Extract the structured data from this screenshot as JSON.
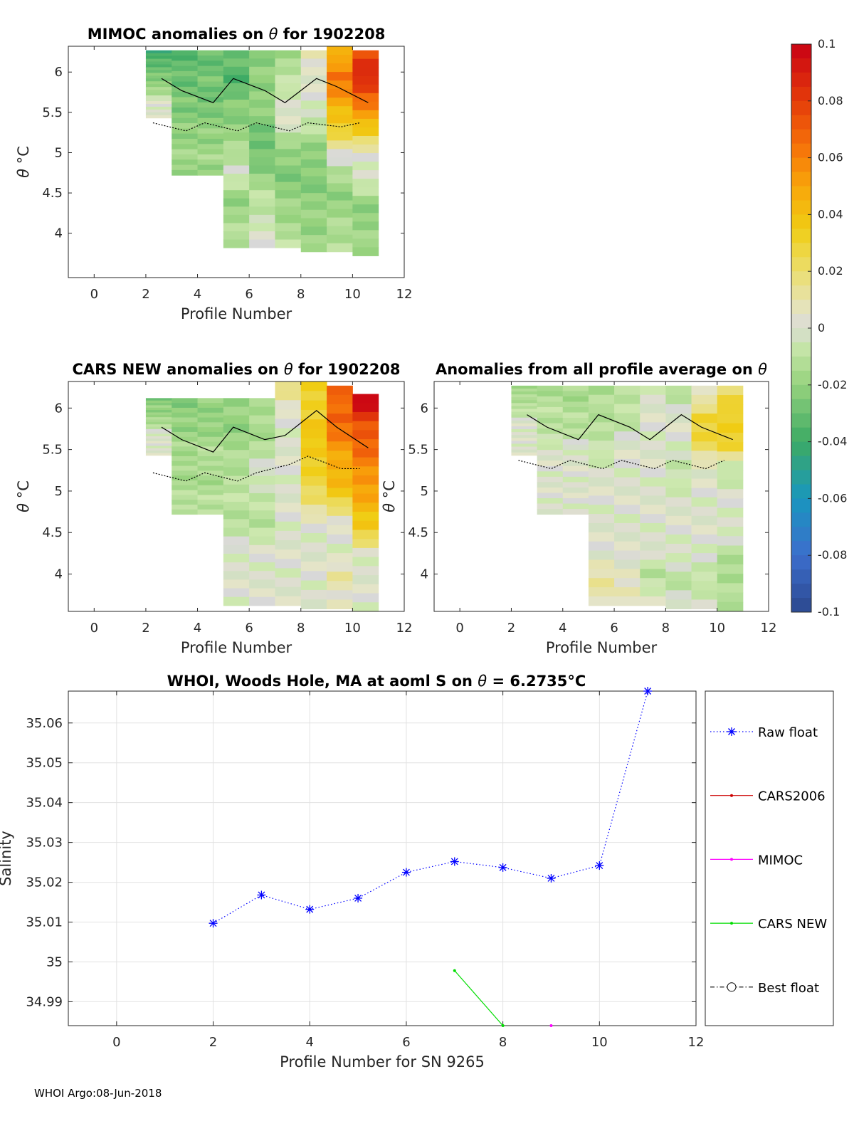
{
  "chart_data": [
    {
      "type": "heatmap",
      "name": "mimoc",
      "title_prefix": "MIMOC anomalies on ",
      "title_symbol": "θ",
      "title_suffix": "  for 1902208",
      "xlabel": "Profile Number",
      "ylabel_symbol": "θ",
      "ylabel_unit": " °C",
      "xlim": [
        -1,
        12
      ],
      "ylim": [
        3.45,
        6.32
      ],
      "xticks": [
        "0",
        "2",
        "4",
        "6",
        "8",
        "10",
        "12"
      ],
      "yticks": [
        "4",
        "4.5",
        "5",
        "5.5",
        "6"
      ],
      "columns": [
        {
          "x": 2,
          "y_range": [
            5.43,
            6.27
          ],
          "values": [
            -0.04,
            -0.035,
            -0.03,
            -0.025,
            -0.02,
            -0.015,
            0.0,
            0.0,
            0.0
          ]
        },
        {
          "x": 3,
          "y_range": [
            4.72,
            6.27
          ],
          "values": [
            -0.035,
            -0.03,
            -0.03,
            -0.025,
            -0.025,
            -0.02,
            -0.02,
            -0.015,
            -0.02
          ]
        },
        {
          "x": 4,
          "y_range": [
            4.72,
            6.27
          ],
          "values": [
            -0.03,
            -0.03,
            -0.025,
            -0.03,
            -0.025,
            -0.02,
            -0.02,
            -0.015,
            -0.02
          ]
        },
        {
          "x": 5,
          "y_range": [
            3.82,
            6.27
          ],
          "values": [
            -0.03,
            -0.035,
            -0.025,
            -0.02,
            -0.015,
            0.0,
            -0.02,
            -0.015,
            -0.01
          ]
        },
        {
          "x": 6,
          "y_range": [
            3.82,
            6.27
          ],
          "values": [
            -0.025,
            -0.02,
            -0.02,
            -0.025,
            -0.03,
            -0.02,
            -0.01,
            -0.005,
            0.0
          ]
        },
        {
          "x": 7,
          "y_range": [
            3.82,
            6.27
          ],
          "values": [
            -0.015,
            -0.01,
            0.0,
            0.0,
            -0.02,
            -0.025,
            -0.02,
            -0.015,
            -0.01
          ]
        },
        {
          "x": 8,
          "y_range": [
            3.77,
            6.27
          ],
          "values": [
            0.01,
            0.0,
            0.0,
            -0.01,
            -0.02,
            -0.025,
            -0.02,
            -0.02,
            -0.015
          ]
        },
        {
          "x": 9,
          "y_range": [
            3.77,
            6.32
          ],
          "values": [
            0.04,
            0.065,
            0.05,
            0.035,
            0.01,
            -0.015,
            -0.02,
            -0.015,
            -0.01
          ]
        },
        {
          "x": 10,
          "y_range": [
            3.72,
            6.27
          ],
          "values": [
            0.075,
            0.09,
            0.06,
            0.04,
            0.0,
            0.0,
            -0.02,
            -0.02,
            -0.015
          ]
        }
      ]
    },
    {
      "type": "heatmap",
      "name": "cars",
      "title_prefix": "CARS NEW anomalies on ",
      "title_symbol": "θ",
      "title_suffix": " for 1902208",
      "xlabel": "Profile Number",
      "ylabel_symbol": "θ",
      "ylabel_unit": " °C",
      "xlim": [
        -1,
        12
      ],
      "ylim": [
        3.55,
        6.32
      ],
      "xticks": [
        "0",
        "2",
        "4",
        "6",
        "8",
        "10",
        "12"
      ],
      "yticks": [
        "4",
        "4.5",
        "5",
        "5.5",
        "6"
      ],
      "columns": [
        {
          "x": 2,
          "y_range": [
            5.43,
            6.12
          ],
          "values": [
            -0.025,
            -0.02,
            -0.02,
            -0.015,
            -0.01,
            0.0,
            0.0,
            0.0,
            0.0
          ]
        },
        {
          "x": 3,
          "y_range": [
            4.72,
            6.12
          ],
          "values": [
            -0.025,
            -0.02,
            -0.02,
            -0.015,
            -0.015,
            -0.015,
            -0.015,
            -0.01,
            -0.01
          ]
        },
        {
          "x": 4,
          "y_range": [
            4.72,
            6.12
          ],
          "values": [
            -0.02,
            -0.02,
            -0.02,
            -0.015,
            -0.01,
            -0.015,
            -0.015,
            -0.01,
            -0.01
          ]
        },
        {
          "x": 5,
          "y_range": [
            3.62,
            6.12
          ],
          "values": [
            -0.02,
            -0.02,
            -0.015,
            -0.01,
            -0.01,
            -0.01,
            0.0,
            0.0,
            0.0
          ]
        },
        {
          "x": 6,
          "y_range": [
            3.62,
            6.12
          ],
          "values": [
            -0.015,
            -0.015,
            -0.01,
            0.0,
            -0.01,
            -0.01,
            0.0,
            0.0,
            0.0
          ]
        },
        {
          "x": 7,
          "y_range": [
            3.62,
            6.32
          ],
          "values": [
            0.02,
            0.0,
            0.0,
            0.0,
            0.0,
            0.0,
            0.0,
            0.0,
            0.0
          ]
        },
        {
          "x": 8,
          "y_range": [
            3.58,
            6.32
          ],
          "values": [
            0.035,
            0.03,
            0.04,
            0.03,
            0.025,
            0.0,
            0.0,
            0.0,
            0.0
          ]
        },
        {
          "x": 9,
          "y_range": [
            3.58,
            6.27
          ],
          "values": [
            0.065,
            0.07,
            0.055,
            0.045,
            0.035,
            0.0,
            0.0,
            0.01,
            0.005
          ]
        },
        {
          "x": 10,
          "y_range": [
            3.55,
            6.17
          ],
          "values": [
            0.1,
            0.075,
            0.065,
            0.055,
            0.045,
            0.035,
            0.0,
            0.0,
            0.0
          ]
        }
      ]
    },
    {
      "type": "heatmap",
      "name": "avg",
      "title_prefix": "Anomalies from all profile average on ",
      "title_symbol": "θ",
      "title_suffix": "",
      "xlabel": "Profile Number",
      "ylabel_symbol": "θ",
      "ylabel_unit": " °C",
      "xlim": [
        -1,
        12
      ],
      "ylim": [
        3.55,
        6.32
      ],
      "xticks": [
        "0",
        "2",
        "4",
        "6",
        "8",
        "10",
        "12"
      ],
      "yticks": [
        "4",
        "4.5",
        "5",
        "5.5",
        "6"
      ],
      "columns": [
        {
          "x": 2,
          "y_range": [
            5.43,
            6.27
          ],
          "values": [
            -0.015,
            -0.015,
            -0.01,
            -0.01,
            0.0,
            0.0,
            0.0,
            0.0,
            0.0
          ]
        },
        {
          "x": 3,
          "y_range": [
            4.72,
            6.27
          ],
          "values": [
            -0.015,
            -0.01,
            -0.01,
            -0.01,
            0.0,
            0.0,
            0.0,
            0.0,
            0.0
          ]
        },
        {
          "x": 4,
          "y_range": [
            4.72,
            6.27
          ],
          "values": [
            -0.015,
            -0.015,
            -0.01,
            -0.01,
            0.0,
            0.0,
            0.0,
            0.0,
            0.0
          ]
        },
        {
          "x": 5,
          "y_range": [
            3.62,
            6.27
          ],
          "values": [
            -0.015,
            -0.01,
            -0.01,
            0.0,
            0.0,
            0.0,
            0.0,
            0.01,
            0.01
          ]
        },
        {
          "x": 6,
          "y_range": [
            3.62,
            6.27
          ],
          "values": [
            -0.01,
            -0.01,
            0.0,
            0.0,
            0.0,
            0.0,
            0.0,
            0.005,
            0.005
          ]
        },
        {
          "x": 7,
          "y_range": [
            3.62,
            6.27
          ],
          "values": [
            0.0,
            0.0,
            0.0,
            0.0,
            0.0,
            0.0,
            0.0,
            -0.01,
            0.0
          ]
        },
        {
          "x": 8,
          "y_range": [
            3.58,
            6.27
          ],
          "values": [
            -0.01,
            0.0,
            0.0,
            -0.01,
            0.0,
            0.0,
            0.0,
            -0.01,
            0.0
          ]
        },
        {
          "x": 9,
          "y_range": [
            3.58,
            6.27
          ],
          "values": [
            0.0,
            0.03,
            0.025,
            0.0,
            0.0,
            0.0,
            0.0,
            -0.01,
            0.0
          ]
        },
        {
          "x": 10,
          "y_range": [
            3.55,
            6.27
          ],
          "values": [
            0.02,
            0.035,
            0.03,
            -0.01,
            0.0,
            0.0,
            -0.01,
            -0.015,
            -0.01
          ]
        }
      ]
    },
    {
      "type": "line",
      "name": "salinity",
      "title_prefix": "WHOI, Woods Hole, MA at aoml S on ",
      "title_symbol": "θ",
      "title_suffix": " = 6.2735°C",
      "xlabel": "Profile Number for SN 9265",
      "ylabel": "Salinity",
      "xlim": [
        -1,
        12
      ],
      "ylim": [
        34.984,
        35.068
      ],
      "xticks": [
        "0",
        "2",
        "4",
        "6",
        "8",
        "10",
        "12"
      ],
      "yticks": [
        "34.99",
        "35",
        "35.01",
        "35.02",
        "35.03",
        "35.04",
        "35.05",
        "35.06"
      ],
      "grid": true,
      "series": [
        {
          "name": "Raw float",
          "color": "#0000ff",
          "marker": "star",
          "style": "dotted",
          "x": [
            2,
            3,
            4,
            5,
            6,
            7,
            8,
            9,
            10,
            11
          ],
          "y": [
            35.0097,
            35.0168,
            35.0132,
            35.016,
            35.0225,
            35.0252,
            35.0237,
            35.021,
            35.0242,
            35.068
          ]
        },
        {
          "name": "CARS2006",
          "color": "#cc0000",
          "marker": "dot",
          "style": "solid",
          "x": [],
          "y": []
        },
        {
          "name": "MIMOC",
          "color": "#ff00ff",
          "marker": "dot",
          "style": "solid",
          "x": [
            9
          ],
          "y": [
            34.984
          ]
        },
        {
          "name": "CARS NEW",
          "color": "#00dd00",
          "marker": "dot",
          "style": "solid",
          "x": [
            7,
            8
          ],
          "y": [
            34.9978,
            34.984
          ]
        },
        {
          "name": "Best float",
          "color": "#000000",
          "marker": "circle",
          "style": "dashdot",
          "x": [],
          "y": []
        }
      ],
      "legend_position": "right"
    }
  ],
  "colorbar": {
    "range": [
      -0.1,
      0.1
    ],
    "ticks": [
      "0.1",
      "0.08",
      "0.06",
      "0.04",
      "0.02",
      "0",
      "-0.02",
      "-0.04",
      "-0.06",
      "-0.08",
      "-0.1"
    ]
  },
  "footer": "WHOI Argo:08-Jun-2018"
}
